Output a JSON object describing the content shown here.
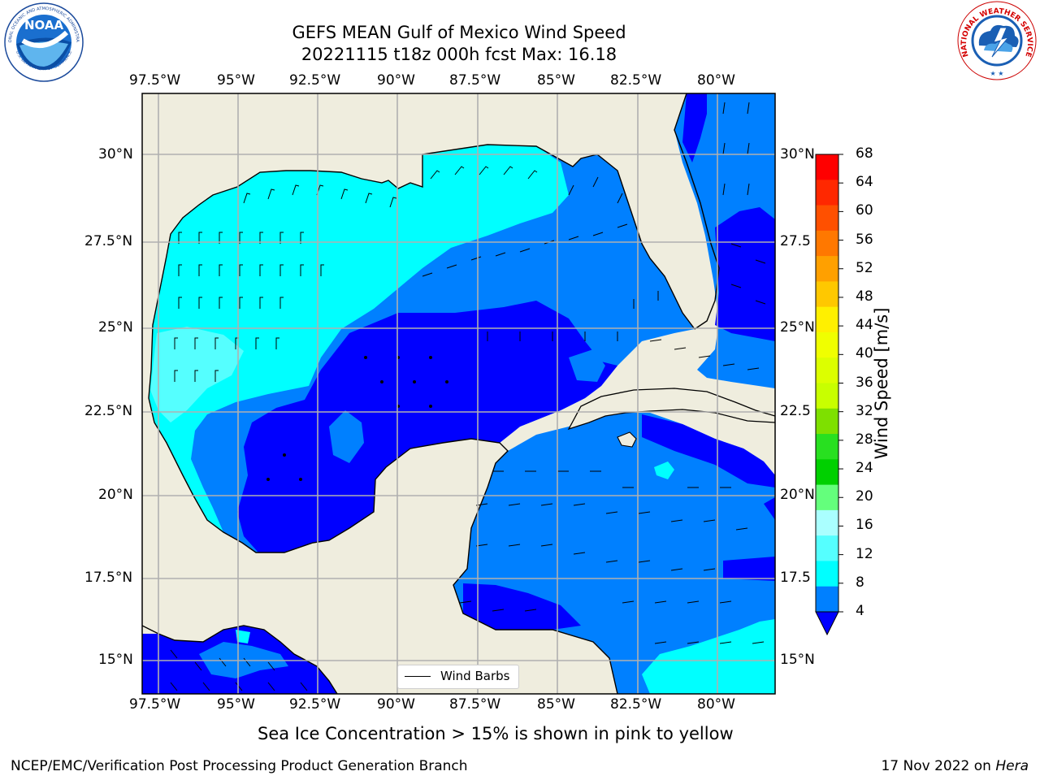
{
  "header": {
    "title_line1": "GEFS MEAN Gulf of Mexico Wind Speed",
    "title_line2": "20221115 t18z 000h fcst   Max: 16.18"
  },
  "logos": {
    "left_text": "NOAA",
    "left_ring_text": "NATIONAL OCEANIC AND ATMOSPHERIC ADMINISTRATION",
    "left_ring_bottom": "U.S. DEPARTMENT OF COMMERCE",
    "right_ring_text": "NATIONAL WEATHER SERVICE"
  },
  "map": {
    "lon_labels": [
      "97.5°W",
      "95°W",
      "92.5°W",
      "90°W",
      "87.5°W",
      "85°W",
      "82.5°W",
      "80°W"
    ],
    "lat_labels_left": [
      "30°N",
      "27.5°N",
      "25°N",
      "22.5°N",
      "20°N",
      "17.5°N",
      "15°N"
    ],
    "lat_labels_right": [
      "30°N",
      "27.5",
      "25°N",
      "22.5",
      "20°N",
      "17.5",
      "15°N"
    ],
    "legend_label": "Wind Barbs",
    "colors": {
      "land": "#efedde",
      "ws_4_8": "#0080ff",
      "ws_lt_4": "#0000ff",
      "ws_8_12": "#00ffff"
    }
  },
  "colorbar": {
    "label": "Wind Speed [m/s]",
    "ticks": [
      "68",
      "64",
      "60",
      "56",
      "52",
      "48",
      "44",
      "40",
      "36",
      "32",
      "28",
      "24",
      "20",
      "16",
      "12",
      "8",
      "4"
    ],
    "colors": [
      "#ff0000",
      "#ff2800",
      "#ff5000",
      "#ff7800",
      "#ffa000",
      "#ffc800",
      "#fff000",
      "#f0ff00",
      "#dcff00",
      "#c8ff00",
      "#7ee000",
      "#28e020",
      "#00d000",
      "#64ff7c",
      "#aaffff",
      "#55ffff",
      "#00ffff",
      "#0080ff"
    ],
    "under_color": "#0000ff"
  },
  "caption": "Sea Ice Concentration > 15% is shown in pink to yellow",
  "footer": {
    "left": "NCEP/EMC/Verification Post Processing Product Generation Branch",
    "right_prefix": "17 Nov 2022 on ",
    "right_italic": "Hera"
  }
}
